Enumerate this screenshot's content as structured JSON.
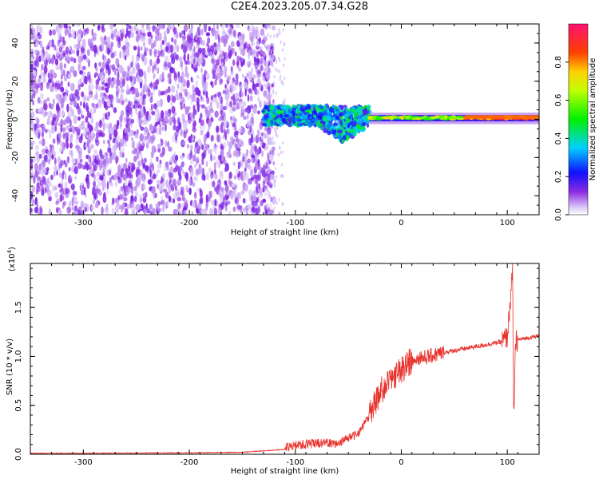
{
  "title": "C2E4.2023.205.07.34.G28",
  "colors": {
    "snr_line": "#e8332d",
    "scatter_violet": "#7b1fe8"
  },
  "chart_data": [
    {
      "type": "heatmap",
      "xlabel": "Height of straight line (km)",
      "ylabel": "Frequency (Hz)",
      "xlim": [
        -350,
        130
      ],
      "ylim": [
        -50,
        50
      ],
      "xticks": [
        -300,
        -200,
        -100,
        0,
        100
      ],
      "yticks": [
        -40,
        -20,
        0,
        20,
        40
      ],
      "grid": false,
      "colorbar": {
        "label": "Normalized spectral amplitude",
        "range": [
          0.0,
          1.0
        ],
        "ticks": [
          "0.0",
          "0.2",
          "0.4",
          "0.6",
          "0.8"
        ],
        "colormap": "rainbow"
      },
      "regions": [
        {
          "x_range": [
            -350,
            -120
          ],
          "y_range": [
            -50,
            50
          ],
          "amplitude": 0.12
        },
        {
          "x_range": [
            -130,
            -30
          ],
          "y_range": [
            -12,
            7
          ],
          "amplitude": 0.4
        },
        {
          "x_range": [
            -30,
            130
          ],
          "y_range": [
            -2,
            3
          ],
          "amplitude": 0.55
        },
        {
          "x_range": [
            60,
            130
          ],
          "y_range": [
            0,
            3
          ],
          "amplitude": 0.8
        }
      ]
    },
    {
      "type": "line",
      "xlabel": "Height of straight line (km)",
      "ylabel": "SNR (10 * v/v)",
      "y_multiplier_label": "(x10",
      "y_multiplier_exp": "4",
      "y_multiplier_close": ")",
      "xlim": [
        -350,
        130
      ],
      "ylim": [
        0,
        1.95
      ],
      "xticks": [
        -300,
        -200,
        -100,
        0,
        100
      ],
      "yticks": [
        "0.0",
        "0.5",
        "1.0",
        "1.5"
      ],
      "grid": false,
      "series": [
        {
          "x": [
            -350,
            -300,
            -200,
            -150,
            -110,
            -100,
            -80,
            -60,
            -40,
            -30,
            -20,
            -10,
            0,
            10,
            20,
            30,
            40,
            60,
            80,
            95,
            100,
            105,
            106,
            108,
            110,
            120,
            130
          ],
          "y": [
            0.01,
            0.01,
            0.015,
            0.02,
            0.05,
            0.08,
            0.1,
            0.1,
            0.2,
            0.38,
            0.6,
            0.72,
            0.82,
            0.92,
            0.98,
            1.01,
            1.04,
            1.08,
            1.12,
            1.15,
            1.2,
            1.85,
            0.38,
            1.15,
            1.17,
            1.19,
            1.21
          ]
        }
      ]
    }
  ]
}
